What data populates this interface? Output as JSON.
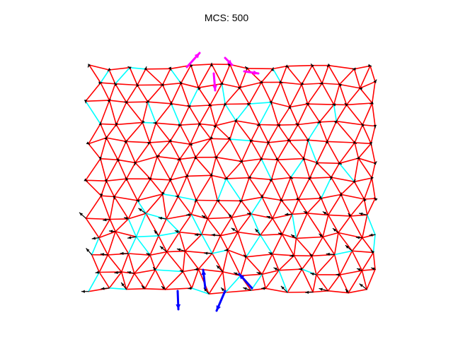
{
  "title": "MCS: 500",
  "colors": {
    "background": "#ffffff",
    "edge_primary": "#ff0000",
    "edge_secondary": "#00ffff",
    "arrow_small": "#000000",
    "arrow_large_top": "#ff00ff",
    "arrow_large_bottom": "#0000ff"
  },
  "lattice": {
    "description_type": "triangular spring mesh",
    "rows": 13,
    "cols": 15
  }
}
